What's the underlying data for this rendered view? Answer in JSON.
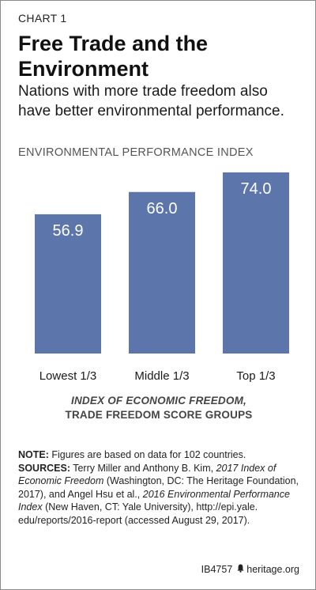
{
  "header": {
    "chart_label": "CHART 1",
    "title_line1": "Free Trade and the",
    "title_line2": "Environment",
    "subtitle_line1": "Nations with more trade freedom also",
    "subtitle_line2": "have better environmental performance."
  },
  "chart_data": {
    "type": "bar",
    "ylabel": "ENVIRONMENTAL PERFORMANCE INDEX",
    "xlabel_line1": "INDEX OF ECONOMIC FREEDOM,",
    "xlabel_line2": "TRADE FREEDOM SCORE GROUPS",
    "categories": [
      "Lowest 1/3",
      "Middle 1/3",
      "Top 1/3"
    ],
    "values": [
      56.9,
      66.0,
      74.0
    ],
    "value_labels": [
      "56.9",
      "66.0",
      "74.0"
    ],
    "ylim": [
      0,
      74.0
    ],
    "bar_color": "#5c75ab",
    "grid": false,
    "legend": "none"
  },
  "notes": {
    "note_label": "NOTE:",
    "note_text": " Figures are based on data for 102 countries.",
    "sources_label": "SOURCES:",
    "src1": " Terry Miller and Anthony B. Kim, ",
    "src1_title": "2017 Index of Economic Freedom",
    "src1_rest": " (Washington, DC: The Heritage Foundation, 2017), and Angel Hsu et al., ",
    "src2_title": "2016 Environmental Performance Index",
    "src2_rest": " (New Haven, CT: Yale University), http://epi.yale. edu/reports/2016-report (accessed August 29, 2017)."
  },
  "footer": {
    "code": "IB4757",
    "site": "heritage.org"
  }
}
